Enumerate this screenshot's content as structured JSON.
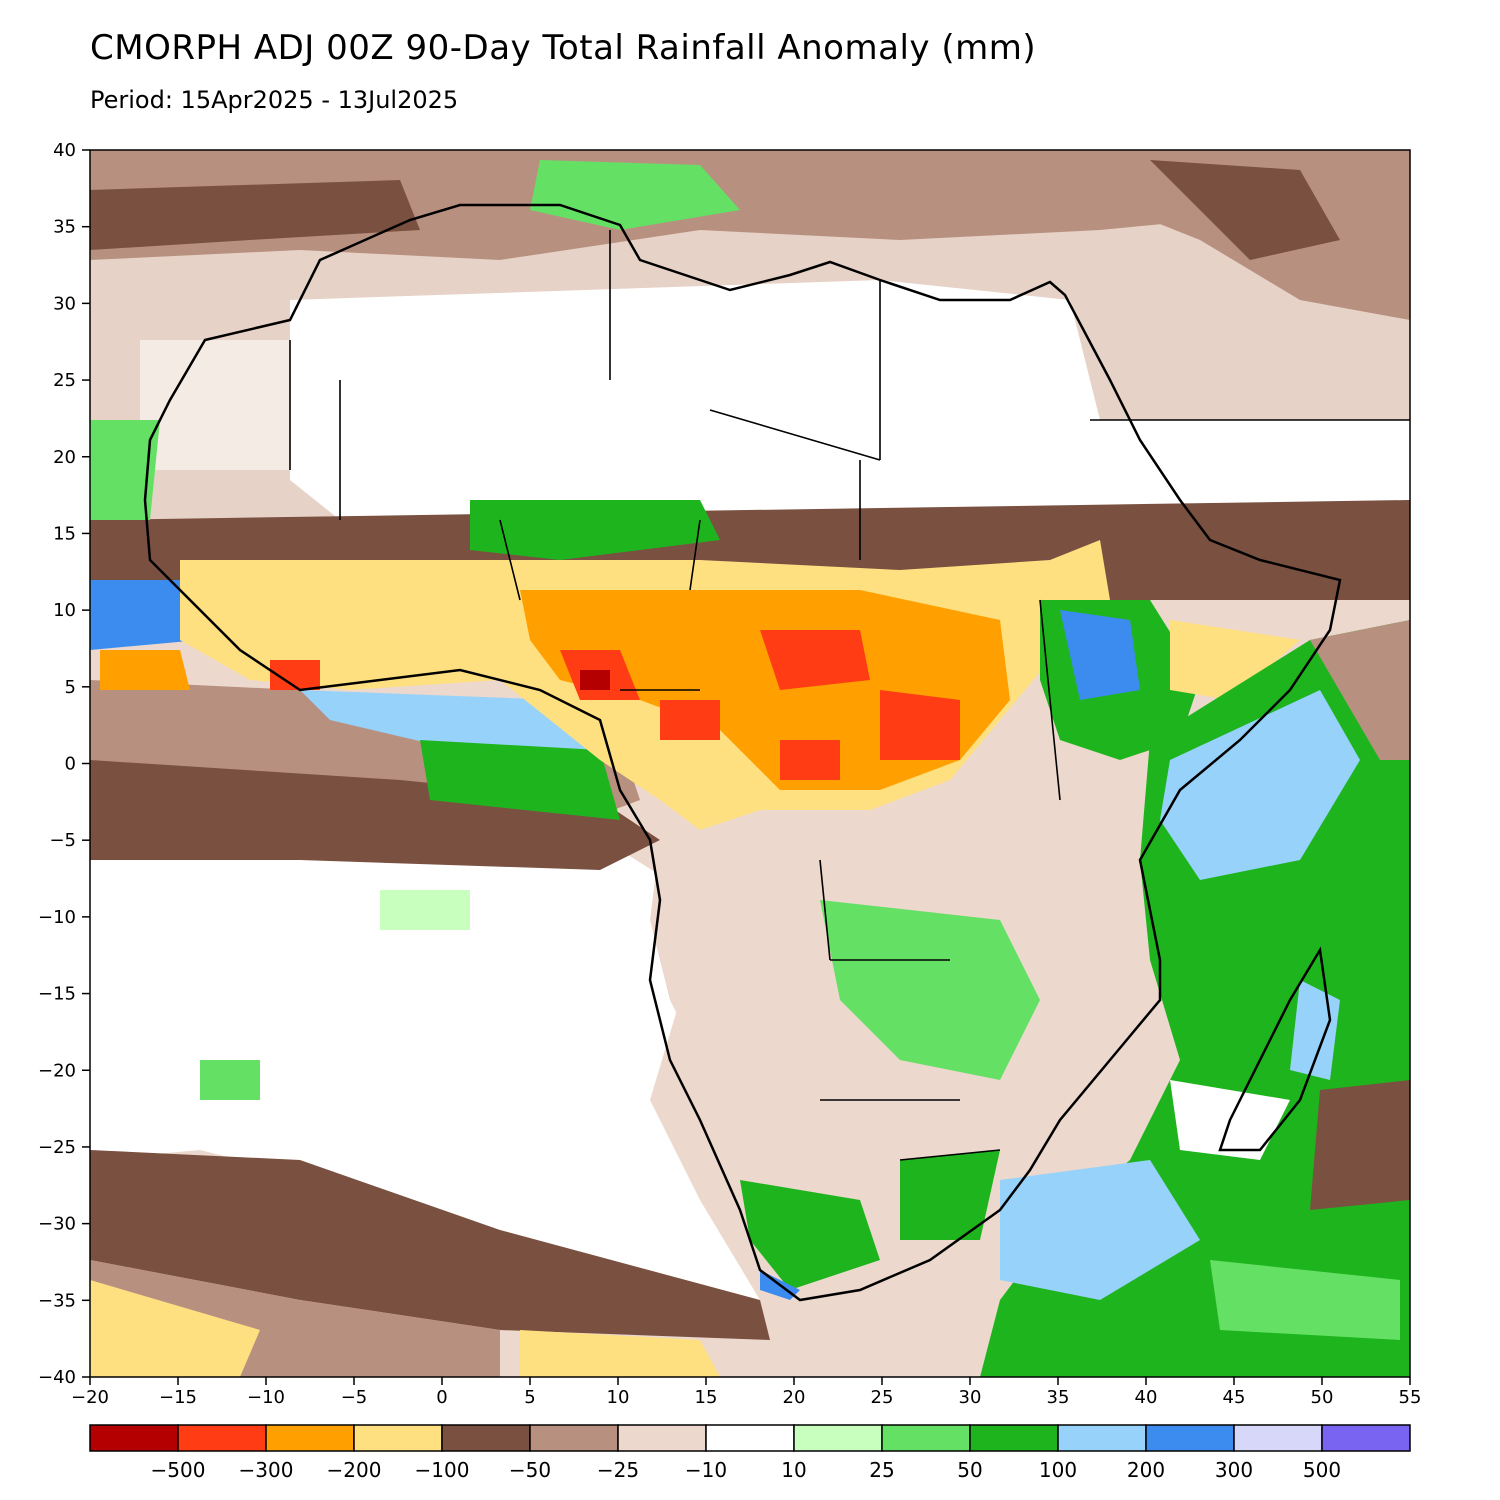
{
  "title": "CMORPH ADJ 00Z 90-Day Total Rainfall Anomaly (mm)",
  "subtitle": "Period: 15Apr2025 - 13Jul2025",
  "map": {
    "lon_range": [
      -20,
      55
    ],
    "lat_range": [
      -40,
      40
    ],
    "x_ticks": [
      "−20",
      "−15",
      "−10",
      "−5",
      "0",
      "5",
      "10",
      "15",
      "20",
      "25",
      "30",
      "35",
      "40",
      "45",
      "50",
      "55"
    ],
    "y_ticks": [
      "40",
      "35",
      "30",
      "25",
      "20",
      "15",
      "10",
      "5",
      "0",
      "−5",
      "−10",
      "−15",
      "−20",
      "−25",
      "−30",
      "−35",
      "−40"
    ],
    "region": "Africa"
  },
  "legend": {
    "colors": [
      "#b40000",
      "#ff3c14",
      "#ffa000",
      "#ffe080",
      "#7a5040",
      "#b89080",
      "#ecd8cc",
      "#ffffff",
      "#c8ffbe",
      "#64e064",
      "#1eb41e",
      "#96d2fa",
      "#3c8cf0",
      "#d7d7fa",
      "#7864f0"
    ],
    "labels": [
      "−500",
      "−300",
      "−200",
      "−100",
      "−50",
      "−25",
      "−10",
      "10",
      "25",
      "50",
      "100",
      "200",
      "300",
      "500"
    ]
  }
}
